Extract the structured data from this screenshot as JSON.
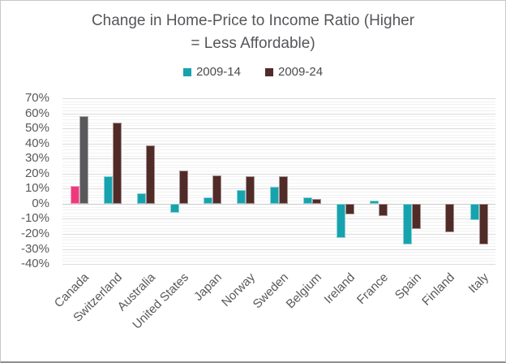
{
  "chart_data": {
    "type": "bar",
    "title": "Change in Home-Price to Income Ratio (Higher = Less Affordable)",
    "title_lines": [
      "Change in Home-Price to Income Ratio (Higher",
      "= Less Affordable)"
    ],
    "categories": [
      "Canada",
      "Switzerland",
      "Australia",
      "United States",
      "Japan",
      "Norway",
      "Sweden",
      "Belgium",
      "Ireland",
      "France",
      "Spain",
      "Finland",
      "Italy"
    ],
    "series": [
      {
        "name": "2009-14",
        "color": "#17A3AE",
        "values": [
          12,
          18,
          7,
          -6,
          4,
          9,
          11,
          4,
          -23,
          2,
          -27,
          0,
          -11
        ]
      },
      {
        "name": "2009-24",
        "color": "#512B28",
        "values": [
          58,
          54,
          39,
          22,
          19,
          18,
          18,
          3,
          -7,
          -8,
          -17,
          -19,
          -27
        ]
      }
    ],
    "highlight": {
      "category": "Canada",
      "colors": [
        "#ED3A7E",
        "#59595B"
      ]
    },
    "ylim": [
      -40,
      70
    ],
    "ytick_step": 10,
    "ytick_labels": [
      "70%",
      "60%",
      "50%",
      "40%",
      "30%",
      "20%",
      "10%",
      "0%",
      "-10%",
      "-20%",
      "-30%",
      "-40%"
    ],
    "unit": "%",
    "grid": true,
    "legend_position": "top"
  },
  "colors": {
    "background": "#ffffff",
    "frame_border": "#c8c8c8",
    "title_text": "#55565a",
    "tick_text": "#58595b",
    "gridline_major": "#dbdbdb",
    "gridline_minor": "#f1f1f1"
  }
}
